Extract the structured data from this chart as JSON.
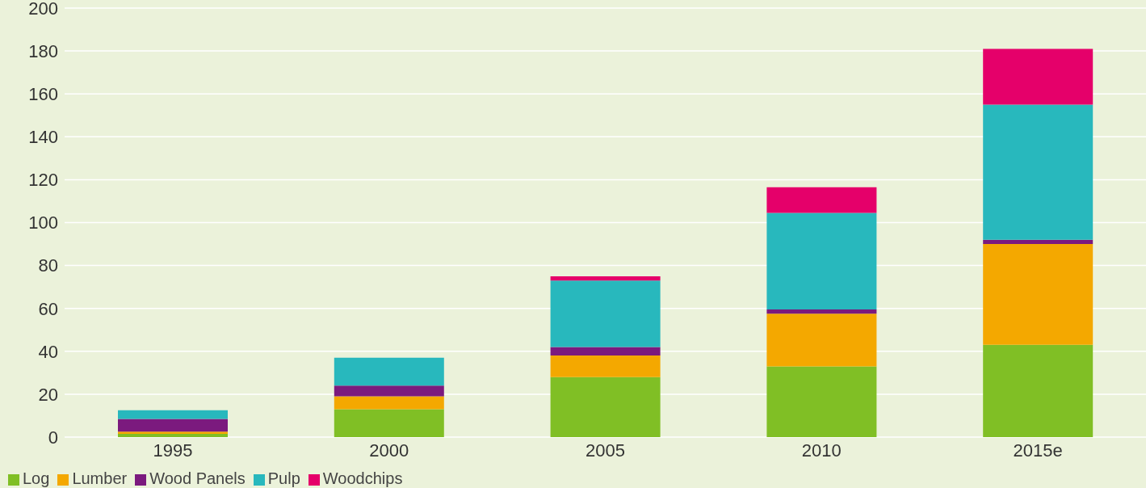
{
  "chart_data": {
    "type": "bar",
    "stacked": true,
    "categories": [
      "1995",
      "2000",
      "2005",
      "2010",
      "2015e"
    ],
    "series": [
      {
        "name": "Log",
        "color": "#80bf25",
        "values": [
          1.5,
          13,
          28,
          33,
          43
        ]
      },
      {
        "name": "Lumber",
        "color": "#f4a800",
        "values": [
          1,
          6,
          10,
          24.5,
          47
        ]
      },
      {
        "name": "Wood Panels",
        "color": "#7b1a7e",
        "values": [
          6,
          5,
          4,
          2,
          2
        ]
      },
      {
        "name": "Pulp",
        "color": "#28b8bd",
        "values": [
          4,
          13,
          31,
          45,
          63
        ]
      },
      {
        "name": "Woodchips",
        "color": "#e5006a",
        "values": [
          null,
          null,
          2,
          12,
          26
        ]
      }
    ],
    "ylim": [
      0,
      200
    ],
    "yticks": [
      0,
      20,
      40,
      60,
      80,
      100,
      120,
      140,
      160,
      180,
      200
    ],
    "grid": "y",
    "legend": "bottom left"
  }
}
